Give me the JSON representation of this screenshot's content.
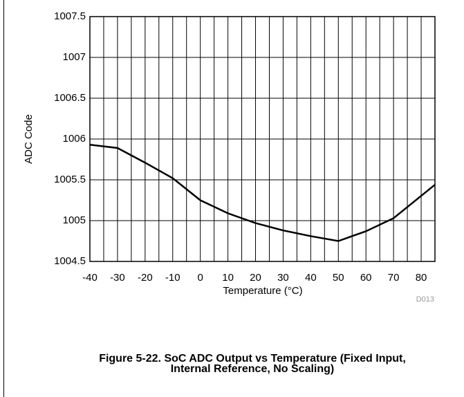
{
  "chart_data": {
    "type": "line",
    "x_label": "Temperature (°C)",
    "y_label": "ADC Code",
    "code": "D013",
    "caption": [
      "Figure 5-22. SoC ADC Output vs Temperature (Fixed Input,",
      "Internal Reference, No Scaling)"
    ],
    "x": [
      -40,
      -30,
      -20,
      -10,
      0,
      10,
      20,
      30,
      40,
      50,
      60,
      70,
      85
    ],
    "series": [
      {
        "name": "ADC Code",
        "color": "#000000",
        "values": [
          1005.93,
          1005.89,
          1005.71,
          1005.52,
          1005.25,
          1005.09,
          1004.97,
          1004.88,
          1004.81,
          1004.75,
          1004.87,
          1005.03,
          1005.44
        ]
      }
    ],
    "xlim": [
      -40,
      85
    ],
    "ylim": [
      1004.5,
      1007.5
    ],
    "xticks": [
      -40,
      -30,
      -20,
      -10,
      0,
      10,
      20,
      30,
      40,
      50,
      60,
      70,
      80
    ],
    "xgrid": [
      -35,
      -25,
      -15,
      -5,
      5,
      15,
      25,
      35,
      45,
      55,
      65,
      75
    ],
    "yticks": [
      1004.5,
      1005,
      1005.5,
      1006,
      1006.5,
      1007,
      1007.5
    ],
    "grid": true
  }
}
